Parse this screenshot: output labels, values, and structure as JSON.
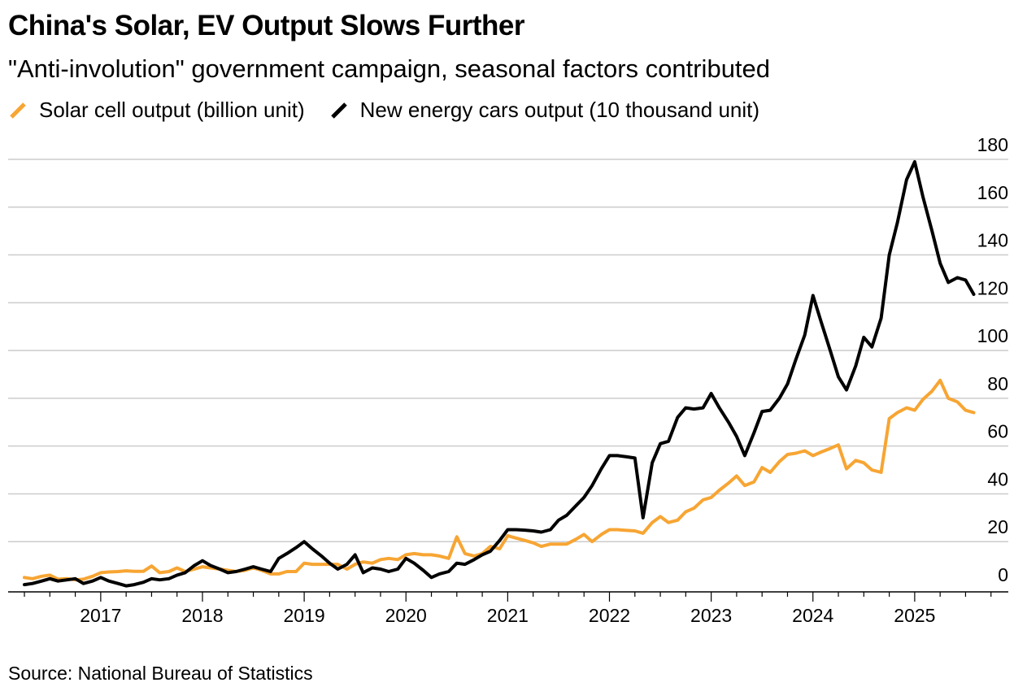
{
  "title": "China's Solar, EV Output Slows Further",
  "subtitle": "\"Anti-involution\" government campaign, seasonal factors contributed",
  "source": "Source: National Bureau of Statistics",
  "colors": {
    "solar": "#f7a533",
    "ev": "#000000",
    "grid": "#cccccc",
    "axis": "#000000"
  },
  "chart_data": {
    "type": "line",
    "ylim": [
      0,
      180
    ],
    "y_ticks": [
      0,
      20,
      40,
      60,
      80,
      100,
      120,
      140,
      160,
      180
    ],
    "y_axis_position": "right",
    "grid": true,
    "legend_position": "top-left",
    "x_range": [
      2016.17,
      2025.92
    ],
    "x_ticks": [
      {
        "label": "2017",
        "value": 2017
      },
      {
        "label": "2018",
        "value": 2018
      },
      {
        "label": "2019",
        "value": 2019
      },
      {
        "label": "2020",
        "value": 2020
      },
      {
        "label": "2021",
        "value": 2021
      },
      {
        "label": "2022",
        "value": 2022
      },
      {
        "label": "2023",
        "value": 2023
      },
      {
        "label": "2024",
        "value": 2024
      },
      {
        "label": "2025",
        "value": 2025
      }
    ],
    "series": [
      {
        "name": "Solar cell output (billion unit)",
        "color_key": "solar",
        "points": [
          [
            2016.25,
            5.0
          ],
          [
            2016.33,
            4.5
          ],
          [
            2016.42,
            5.5
          ],
          [
            2016.5,
            6.0
          ],
          [
            2016.58,
            4.3
          ],
          [
            2016.67,
            4.5
          ],
          [
            2016.75,
            4.0
          ],
          [
            2016.83,
            4.3
          ],
          [
            2016.92,
            5.5
          ],
          [
            2017.0,
            7.0
          ],
          [
            2017.08,
            7.3
          ],
          [
            2017.17,
            7.5
          ],
          [
            2017.25,
            7.8
          ],
          [
            2017.33,
            7.6
          ],
          [
            2017.42,
            7.6
          ],
          [
            2017.5,
            9.8
          ],
          [
            2017.58,
            7.0
          ],
          [
            2017.67,
            7.5
          ],
          [
            2017.75,
            9.0
          ],
          [
            2017.83,
            7.5
          ],
          [
            2017.92,
            8.5
          ],
          [
            2018.0,
            9.5
          ],
          [
            2018.08,
            9.0
          ],
          [
            2018.17,
            8.5
          ],
          [
            2018.25,
            8.0
          ],
          [
            2018.33,
            7.5
          ],
          [
            2018.42,
            8.0
          ],
          [
            2018.5,
            9.0
          ],
          [
            2018.58,
            8.0
          ],
          [
            2018.67,
            6.5
          ],
          [
            2018.75,
            6.5
          ],
          [
            2018.83,
            7.5
          ],
          [
            2018.92,
            7.5
          ],
          [
            2019.0,
            11.0
          ],
          [
            2019.08,
            10.5
          ],
          [
            2019.17,
            10.5
          ],
          [
            2019.25,
            10.5
          ],
          [
            2019.33,
            10.5
          ],
          [
            2019.42,
            8.5
          ],
          [
            2019.5,
            10.5
          ],
          [
            2019.58,
            11.5
          ],
          [
            2019.67,
            11.0
          ],
          [
            2019.75,
            12.5
          ],
          [
            2019.83,
            13.0
          ],
          [
            2019.92,
            12.5
          ],
          [
            2020.0,
            14.5
          ],
          [
            2020.08,
            15.0
          ],
          [
            2020.17,
            14.5
          ],
          [
            2020.25,
            14.5
          ],
          [
            2020.33,
            14.0
          ],
          [
            2020.42,
            13.0
          ],
          [
            2020.5,
            22.0
          ],
          [
            2020.58,
            15.0
          ],
          [
            2020.67,
            14.0
          ],
          [
            2020.75,
            15.0
          ],
          [
            2020.83,
            18.0
          ],
          [
            2020.92,
            17.0
          ],
          [
            2021.0,
            22.5
          ],
          [
            2021.08,
            21.5
          ],
          [
            2021.17,
            20.5
          ],
          [
            2021.25,
            19.5
          ],
          [
            2021.33,
            18.0
          ],
          [
            2021.42,
            19.0
          ],
          [
            2021.5,
            19.0
          ],
          [
            2021.58,
            19.0
          ],
          [
            2021.67,
            21.0
          ],
          [
            2021.75,
            23.0
          ],
          [
            2021.83,
            20.0
          ],
          [
            2021.92,
            23.0
          ],
          [
            2022.0,
            25.0
          ],
          [
            2022.08,
            25.0
          ],
          [
            2022.17,
            24.7
          ],
          [
            2022.25,
            24.5
          ],
          [
            2022.33,
            23.5
          ],
          [
            2022.42,
            28.0
          ],
          [
            2022.5,
            30.5
          ],
          [
            2022.58,
            28.0
          ],
          [
            2022.67,
            29.0
          ],
          [
            2022.75,
            32.5
          ],
          [
            2022.83,
            34.0
          ],
          [
            2022.92,
            37.5
          ],
          [
            2023.0,
            38.5
          ],
          [
            2023.08,
            41.5
          ],
          [
            2023.17,
            44.5
          ],
          [
            2023.25,
            47.5
          ],
          [
            2023.33,
            43.5
          ],
          [
            2023.42,
            45.0
          ],
          [
            2023.5,
            51.0
          ],
          [
            2023.58,
            49.0
          ],
          [
            2023.67,
            53.5
          ],
          [
            2023.75,
            56.5
          ],
          [
            2023.83,
            57.0
          ],
          [
            2023.92,
            58.0
          ],
          [
            2024.0,
            56.0
          ],
          [
            2024.08,
            57.5
          ],
          [
            2024.17,
            59.0
          ],
          [
            2024.25,
            60.5
          ],
          [
            2024.33,
            50.5
          ],
          [
            2024.42,
            54.0
          ],
          [
            2024.5,
            53.0
          ],
          [
            2024.58,
            50.0
          ],
          [
            2024.67,
            49.0
          ],
          [
            2024.75,
            71.5
          ],
          [
            2024.83,
            74.0
          ],
          [
            2024.92,
            76.0
          ],
          [
            2025.0,
            75.0
          ],
          [
            2025.08,
            79.5
          ],
          [
            2025.17,
            83.0
          ],
          [
            2025.25,
            87.5
          ],
          [
            2025.33,
            80.0
          ],
          [
            2025.42,
            78.5
          ],
          [
            2025.5,
            75.0
          ],
          [
            2025.58,
            74.0
          ]
        ]
      },
      {
        "name": "New energy cars output (10 thousand unit)",
        "color_key": "ev",
        "points": [
          [
            2016.25,
            2.0
          ],
          [
            2016.33,
            2.5
          ],
          [
            2016.42,
            3.5
          ],
          [
            2016.5,
            4.5
          ],
          [
            2016.58,
            3.5
          ],
          [
            2016.67,
            4.0
          ],
          [
            2016.75,
            4.5
          ],
          [
            2016.83,
            2.5
          ],
          [
            2016.92,
            3.5
          ],
          [
            2017.0,
            5.0
          ],
          [
            2017.08,
            3.5
          ],
          [
            2017.17,
            2.5
          ],
          [
            2017.25,
            1.5
          ],
          [
            2017.33,
            2.0
          ],
          [
            2017.42,
            3.0
          ],
          [
            2017.5,
            4.5
          ],
          [
            2017.58,
            4.0
          ],
          [
            2017.67,
            4.5
          ],
          [
            2017.75,
            6.0
          ],
          [
            2017.83,
            7.0
          ],
          [
            2017.92,
            10.0
          ],
          [
            2018.0,
            12.0
          ],
          [
            2018.08,
            10.0
          ],
          [
            2018.17,
            8.5
          ],
          [
            2018.25,
            7.0
          ],
          [
            2018.33,
            7.5
          ],
          [
            2018.42,
            8.5
          ],
          [
            2018.5,
            9.5
          ],
          [
            2018.58,
            8.5
          ],
          [
            2018.67,
            7.5
          ],
          [
            2018.75,
            13.0
          ],
          [
            2018.83,
            15.0
          ],
          [
            2018.92,
            17.5
          ],
          [
            2019.0,
            20.0
          ],
          [
            2019.08,
            17.0
          ],
          [
            2019.17,
            14.0
          ],
          [
            2019.25,
            11.0
          ],
          [
            2019.33,
            8.5
          ],
          [
            2019.42,
            10.5
          ],
          [
            2019.5,
            14.5
          ],
          [
            2019.58,
            7.0
          ],
          [
            2019.67,
            9.0
          ],
          [
            2019.75,
            8.5
          ],
          [
            2019.83,
            7.5
          ],
          [
            2019.92,
            8.5
          ],
          [
            2020.0,
            13.0
          ],
          [
            2020.08,
            11.0
          ],
          [
            2020.17,
            8.0
          ],
          [
            2020.25,
            5.0
          ],
          [
            2020.33,
            6.5
          ],
          [
            2020.42,
            7.5
          ],
          [
            2020.5,
            11.0
          ],
          [
            2020.58,
            10.5
          ],
          [
            2020.67,
            12.5
          ],
          [
            2020.75,
            14.5
          ],
          [
            2020.83,
            16.0
          ],
          [
            2020.92,
            20.5
          ],
          [
            2021.0,
            25.0
          ],
          [
            2021.08,
            25.0
          ],
          [
            2021.17,
            24.8
          ],
          [
            2021.25,
            24.5
          ],
          [
            2021.33,
            24.0
          ],
          [
            2021.42,
            25.0
          ],
          [
            2021.5,
            29.0
          ],
          [
            2021.58,
            31.0
          ],
          [
            2021.67,
            35.0
          ],
          [
            2021.75,
            38.5
          ],
          [
            2021.83,
            43.5
          ],
          [
            2021.92,
            50.5
          ],
          [
            2022.0,
            56.0
          ],
          [
            2022.08,
            56.0
          ],
          [
            2022.17,
            55.5
          ],
          [
            2022.25,
            55.0
          ],
          [
            2022.33,
            30.0
          ],
          [
            2022.42,
            53.0
          ],
          [
            2022.5,
            61.0
          ],
          [
            2022.58,
            62.0
          ],
          [
            2022.67,
            72.0
          ],
          [
            2022.75,
            76.0
          ],
          [
            2022.83,
            75.5
          ],
          [
            2022.92,
            76.0
          ],
          [
            2023.0,
            82.0
          ],
          [
            2023.08,
            76.0
          ],
          [
            2023.17,
            70.0
          ],
          [
            2023.25,
            64.0
          ],
          [
            2023.33,
            56.0
          ],
          [
            2023.42,
            65.5
          ],
          [
            2023.5,
            74.5
          ],
          [
            2023.58,
            75.0
          ],
          [
            2023.67,
            80.0
          ],
          [
            2023.75,
            86.0
          ],
          [
            2023.83,
            96.0
          ],
          [
            2023.92,
            106.5
          ],
          [
            2024.0,
            123.0
          ],
          [
            2024.08,
            112.0
          ],
          [
            2024.17,
            100.0
          ],
          [
            2024.25,
            89.0
          ],
          [
            2024.33,
            83.5
          ],
          [
            2024.42,
            93.5
          ],
          [
            2024.5,
            105.5
          ],
          [
            2024.58,
            101.5
          ],
          [
            2024.67,
            113.5
          ],
          [
            2024.75,
            140.0
          ],
          [
            2024.83,
            153.5
          ],
          [
            2024.92,
            171.5
          ],
          [
            2025.0,
            179.0
          ],
          [
            2025.08,
            164.5
          ],
          [
            2025.17,
            150.0
          ],
          [
            2025.25,
            136.5
          ],
          [
            2025.33,
            128.5
          ],
          [
            2025.42,
            130.5
          ],
          [
            2025.5,
            129.5
          ],
          [
            2025.58,
            123.5
          ]
        ]
      }
    ]
  }
}
